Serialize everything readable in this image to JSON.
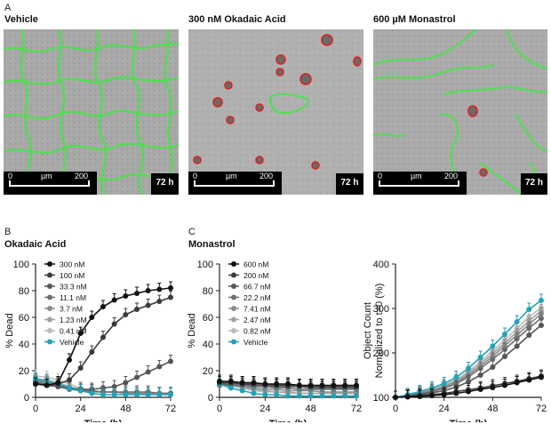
{
  "panel_a": {
    "letter": "A",
    "images": [
      {
        "title": "Vehicle",
        "scale_start": "0",
        "scale_unit": "µm",
        "scale_end": "200",
        "time": "72 h"
      },
      {
        "title": "300 nM Okadaic Acid",
        "scale_start": "0",
        "scale_unit": "µm",
        "scale_end": "200",
        "time": "72 h"
      },
      {
        "title": "600 µM Monastrol",
        "scale_start": "0",
        "scale_unit": "µm",
        "scale_end": "200",
        "time": "72 h"
      }
    ]
  },
  "panel_b": {
    "letter": "B",
    "title": "Okadaic Acid"
  },
  "panel_c": {
    "letter": "C",
    "title": "Monastrol"
  },
  "colors": {
    "c1": "#111111",
    "c2": "#3a3a3a",
    "c3": "#555555",
    "c4": "#6e6e6e",
    "c5": "#8a8a8a",
    "c6": "#a3a3a3",
    "c7": "#bcbcbc",
    "vehicle": "#1fa3b8",
    "outline_green": "#4de04d",
    "outline_red": "#e02020"
  },
  "chart_data": [
    {
      "type": "line",
      "id": "okadaic",
      "xlabel": "Time (h)",
      "ylabel": "% Dead",
      "xlim": [
        0,
        72
      ],
      "ylim": [
        0,
        100
      ],
      "xticks": [
        0,
        24,
        48,
        72
      ],
      "yticks": [
        0,
        20,
        40,
        60,
        80,
        100
      ],
      "legend_position": "top-left",
      "series": [
        {
          "name": "300 nM",
          "x": [
            0,
            6,
            12,
            18,
            24,
            30,
            36,
            42,
            48,
            54,
            60,
            66,
            72
          ],
          "values": [
            10,
            9,
            11,
            28,
            48,
            60,
            68,
            73,
            76,
            78,
            80,
            81,
            82
          ]
        },
        {
          "name": "100 nM",
          "x": [
            0,
            6,
            12,
            18,
            24,
            30,
            36,
            42,
            48,
            54,
            60,
            66,
            72
          ],
          "values": [
            10,
            9,
            10,
            13,
            22,
            34,
            45,
            55,
            62,
            66,
            69,
            72,
            75
          ]
        },
        {
          "name": "33.3 nM",
          "x": [
            0,
            6,
            12,
            18,
            24,
            30,
            36,
            42,
            48,
            54,
            60,
            66,
            72
          ],
          "values": [
            11,
            9,
            8,
            7,
            6,
            6,
            7,
            8,
            11,
            15,
            19,
            23,
            27
          ]
        },
        {
          "name": "11.1 nM",
          "x": [
            0,
            6,
            12,
            18,
            24,
            30,
            36,
            42,
            48,
            54,
            60,
            66,
            72
          ],
          "values": [
            12,
            10,
            8,
            6,
            5,
            5,
            4,
            4,
            4,
            4,
            4,
            3,
            3
          ]
        },
        {
          "name": "3.7 nM",
          "x": [
            0,
            6,
            12,
            18,
            24,
            30,
            36,
            42,
            48,
            54,
            60,
            66,
            72
          ],
          "values": [
            13,
            11,
            9,
            7,
            5,
            4,
            4,
            4,
            3,
            3,
            3,
            3,
            3
          ]
        },
        {
          "name": "1.23 nM",
          "x": [
            0,
            6,
            12,
            18,
            24,
            30,
            36,
            42,
            48,
            54,
            60,
            66,
            72
          ],
          "values": [
            14,
            13,
            11,
            8,
            6,
            5,
            4,
            4,
            3,
            3,
            3,
            3,
            3
          ]
        },
        {
          "name": "0.41 nM",
          "x": [
            0,
            6,
            12,
            18,
            24,
            30,
            36,
            42,
            48,
            54,
            60,
            66,
            72
          ],
          "values": [
            16,
            15,
            13,
            10,
            7,
            5,
            4,
            4,
            3,
            3,
            3,
            3,
            3
          ]
        },
        {
          "name": "Vehicle",
          "x": [
            0,
            6,
            12,
            18,
            24,
            30,
            36,
            42,
            48,
            54,
            60,
            66,
            72
          ],
          "values": [
            14,
            12,
            10,
            7,
            5,
            3,
            2,
            2,
            2,
            2,
            2,
            2,
            2
          ]
        }
      ]
    },
    {
      "type": "line",
      "id": "monastrol",
      "xlabel": "Time (h)",
      "ylabel": "% Dead",
      "xlim": [
        0,
        72
      ],
      "ylim": [
        0,
        100
      ],
      "xticks": [
        0,
        24,
        48,
        72
      ],
      "yticks": [
        0,
        20,
        40,
        60,
        80,
        100
      ],
      "legend_position": "top-left",
      "series": [
        {
          "name": "600 nM",
          "x": [
            0,
            6,
            12,
            18,
            24,
            30,
            36,
            42,
            48,
            54,
            60,
            66,
            72
          ],
          "values": [
            12,
            12,
            11,
            11,
            10,
            10,
            10,
            9,
            9,
            9,
            9,
            9,
            9
          ]
        },
        {
          "name": "200 nM",
          "x": [
            0,
            6,
            12,
            18,
            24,
            30,
            36,
            42,
            48,
            54,
            60,
            66,
            72
          ],
          "values": [
            11,
            11,
            10,
            10,
            10,
            9,
            9,
            9,
            8,
            8,
            8,
            8,
            8
          ]
        },
        {
          "name": "66.7 nM",
          "x": [
            0,
            6,
            12,
            18,
            24,
            30,
            36,
            42,
            48,
            54,
            60,
            66,
            72
          ],
          "values": [
            10,
            10,
            10,
            9,
            9,
            8,
            8,
            8,
            7,
            7,
            7,
            7,
            7
          ]
        },
        {
          "name": "22.2 nM",
          "x": [
            0,
            6,
            12,
            18,
            24,
            30,
            36,
            42,
            48,
            54,
            60,
            66,
            72
          ],
          "values": [
            9,
            9,
            9,
            8,
            8,
            7,
            7,
            6,
            6,
            6,
            6,
            6,
            6
          ]
        },
        {
          "name": "7.41 nM",
          "x": [
            0,
            6,
            12,
            18,
            24,
            30,
            36,
            42,
            48,
            54,
            60,
            66,
            72
          ],
          "values": [
            10,
            9,
            8,
            7,
            6,
            6,
            5,
            5,
            5,
            4,
            4,
            4,
            4
          ]
        },
        {
          "name": "2.47 nM",
          "x": [
            0,
            6,
            12,
            18,
            24,
            30,
            36,
            42,
            48,
            54,
            60,
            66,
            72
          ],
          "values": [
            11,
            9,
            7,
            6,
            5,
            4,
            4,
            3,
            3,
            3,
            3,
            3,
            3
          ]
        },
        {
          "name": "0.82 nM",
          "x": [
            0,
            6,
            12,
            18,
            24,
            30,
            36,
            42,
            48,
            54,
            60,
            66,
            72
          ],
          "values": [
            12,
            9,
            7,
            5,
            4,
            4,
            3,
            3,
            3,
            3,
            3,
            3,
            3
          ]
        },
        {
          "name": "Vehicle",
          "x": [
            0,
            6,
            12,
            18,
            24,
            30,
            36,
            42,
            48,
            54,
            60,
            66,
            72
          ],
          "values": [
            10,
            7,
            5,
            3,
            2,
            2,
            1,
            1,
            1,
            1,
            1,
            1,
            1
          ]
        }
      ]
    },
    {
      "type": "line",
      "id": "object-count",
      "xlabel": "Time (h)",
      "ylabel": "Object Count",
      "ylabel2": "Normalized to t=0 (%)",
      "xlim": [
        0,
        72
      ],
      "ylim": [
        100,
        400
      ],
      "xticks": [
        0,
        24,
        48,
        72
      ],
      "yticks": [
        100,
        200,
        300,
        400
      ],
      "series": [
        {
          "name": "600 nM",
          "x": [
            0,
            6,
            12,
            18,
            24,
            30,
            36,
            42,
            48,
            54,
            60,
            66,
            72
          ],
          "values": [
            100,
            101,
            102,
            104,
            106,
            109,
            113,
            118,
            122,
            127,
            133,
            139,
            145
          ]
        },
        {
          "name": "200 nM",
          "x": [
            0,
            6,
            12,
            18,
            24,
            30,
            36,
            42,
            48,
            54,
            60,
            66,
            72
          ],
          "values": [
            100,
            102,
            104,
            106,
            109,
            113,
            117,
            121,
            126,
            131,
            136,
            142,
            148
          ]
        },
        {
          "name": "66.7 nM",
          "x": [
            0,
            6,
            12,
            18,
            24,
            30,
            36,
            42,
            48,
            54,
            60,
            66,
            72
          ],
          "values": [
            100,
            103,
            106,
            110,
            115,
            123,
            135,
            150,
            168,
            192,
            215,
            240,
            262
          ]
        },
        {
          "name": "22.2 nM",
          "x": [
            0,
            6,
            12,
            18,
            24,
            30,
            36,
            42,
            48,
            54,
            60,
            66,
            72
          ],
          "values": [
            100,
            104,
            108,
            113,
            120,
            130,
            146,
            165,
            186,
            208,
            232,
            256,
            278
          ]
        },
        {
          "name": "7.41 nM",
          "x": [
            0,
            6,
            12,
            18,
            24,
            30,
            36,
            42,
            48,
            54,
            60,
            66,
            72
          ],
          "values": [
            100,
            104,
            109,
            115,
            123,
            134,
            150,
            170,
            192,
            216,
            240,
            264,
            288
          ]
        },
        {
          "name": "2.47 nM",
          "x": [
            0,
            6,
            12,
            18,
            24,
            30,
            36,
            42,
            48,
            54,
            60,
            66,
            72
          ],
          "values": [
            100,
            105,
            110,
            117,
            125,
            137,
            154,
            175,
            198,
            222,
            247,
            272,
            295
          ]
        },
        {
          "name": "0.82 nM",
          "x": [
            0,
            6,
            12,
            18,
            24,
            30,
            36,
            42,
            48,
            54,
            60,
            66,
            72
          ],
          "values": [
            100,
            105,
            111,
            118,
            127,
            140,
            158,
            180,
            204,
            229,
            255,
            281,
            302
          ]
        },
        {
          "name": "Vehicle",
          "x": [
            0,
            6,
            12,
            18,
            24,
            30,
            36,
            42,
            48,
            54,
            60,
            66,
            72
          ],
          "values": [
            100,
            106,
            113,
            121,
            131,
            145,
            165,
            190,
            215,
            242,
            270,
            298,
            318
          ]
        }
      ]
    }
  ]
}
